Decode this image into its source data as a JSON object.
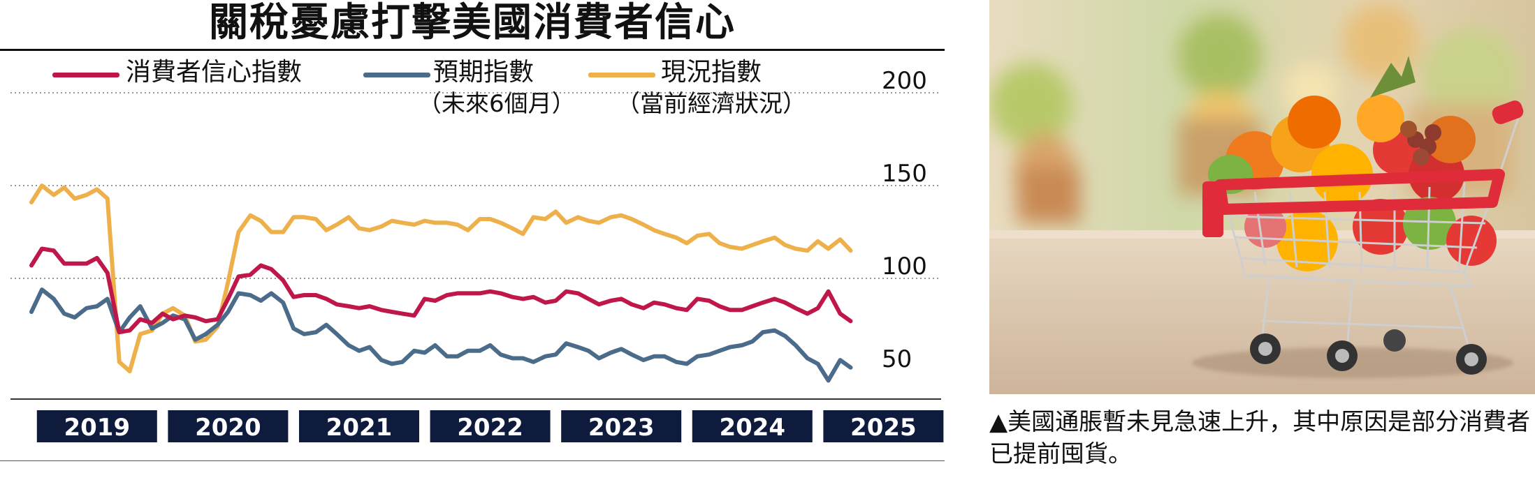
{
  "chart_data": {
    "type": "line",
    "title": "關稅憂慮打擊美國消費者信心",
    "ylim": [
      50,
      200
    ],
    "y_ticks": [
      "50",
      "100",
      "150",
      "200"
    ],
    "grid": true,
    "legend_placement": "top",
    "x_ticks": [
      "2019",
      "2020",
      "2021",
      "2022",
      "2023",
      "2024",
      "2025"
    ],
    "x_range": [
      2019,
      2025.45
    ],
    "series": [
      {
        "name": "消費者信心指數",
        "subtitle": "",
        "color": "#c0174a",
        "x": [
          2019.0,
          2019.08,
          2019.17,
          2019.25,
          2019.33,
          2019.42,
          2019.5,
          2019.58,
          2019.67,
          2019.75,
          2019.83,
          2019.92,
          2020.0,
          2020.08,
          2020.17,
          2020.25,
          2020.33,
          2020.42,
          2020.5,
          2020.58,
          2020.67,
          2020.75,
          2020.83,
          2020.92,
          2021.0,
          2021.08,
          2021.17,
          2021.25,
          2021.33,
          2021.42,
          2021.5,
          2021.58,
          2021.67,
          2021.75,
          2021.83,
          2021.92,
          2022.0,
          2022.08,
          2022.17,
          2022.25,
          2022.33,
          2022.42,
          2022.5,
          2022.58,
          2022.67,
          2022.75,
          2022.83,
          2022.92,
          2023.0,
          2023.08,
          2023.17,
          2023.25,
          2023.33,
          2023.42,
          2023.5,
          2023.58,
          2023.67,
          2023.75,
          2023.83,
          2023.92,
          2024.0,
          2024.08,
          2024.17,
          2024.25,
          2024.33,
          2024.42,
          2024.5,
          2024.58,
          2024.67,
          2024.75,
          2024.83,
          2024.92,
          2025.0,
          2025.08,
          2025.17,
          2025.25
        ],
        "values": [
          122,
          131,
          130,
          123,
          123,
          123,
          126,
          118,
          86,
          87,
          93,
          91,
          96,
          93,
          95,
          94,
          92,
          93,
          104,
          116,
          117,
          122,
          120,
          114,
          105,
          106,
          106,
          104,
          101,
          100,
          99,
          100,
          98,
          97,
          96,
          95,
          104,
          103,
          106,
          107,
          107,
          107,
          108,
          107,
          105,
          104,
          105,
          102,
          103,
          108,
          107,
          104,
          101,
          103,
          104,
          101,
          99,
          102,
          101,
          99,
          98,
          104,
          103,
          100,
          98,
          98,
          100,
          102,
          104,
          102,
          99,
          96,
          99,
          108,
          96,
          92
        ]
      },
      {
        "name": "預期指數",
        "subtitle": "（未來6個月）",
        "color": "#4a6b8a",
        "x": [
          2019.0,
          2019.08,
          2019.17,
          2019.25,
          2019.33,
          2019.42,
          2019.5,
          2019.58,
          2019.67,
          2019.75,
          2019.83,
          2019.92,
          2020.0,
          2020.08,
          2020.17,
          2020.25,
          2020.33,
          2020.42,
          2020.5,
          2020.58,
          2020.67,
          2020.75,
          2020.83,
          2020.92,
          2021.0,
          2021.08,
          2021.17,
          2021.25,
          2021.33,
          2021.42,
          2021.5,
          2021.58,
          2021.67,
          2021.75,
          2021.83,
          2021.92,
          2022.0,
          2022.08,
          2022.17,
          2022.25,
          2022.33,
          2022.42,
          2022.5,
          2022.58,
          2022.67,
          2022.75,
          2022.83,
          2022.92,
          2023.0,
          2023.08,
          2023.17,
          2023.25,
          2023.33,
          2023.42,
          2023.5,
          2023.58,
          2023.67,
          2023.75,
          2023.83,
          2023.92,
          2024.0,
          2024.08,
          2024.17,
          2024.25,
          2024.33,
          2024.42,
          2024.5,
          2024.58,
          2024.67,
          2024.75,
          2024.83,
          2024.92,
          2025.0,
          2025.08,
          2025.17,
          2025.25
        ],
        "values": [
          97,
          109,
          104,
          96,
          94,
          99,
          100,
          104,
          86,
          94,
          100,
          88,
          91,
          95,
          93,
          82,
          85,
          90,
          97,
          107,
          106,
          103,
          107,
          102,
          88,
          85,
          86,
          90,
          85,
          79,
          76,
          78,
          71,
          69,
          70,
          76,
          75,
          79,
          73,
          73,
          76,
          76,
          79,
          74,
          72,
          72,
          70,
          73,
          74,
          80,
          78,
          76,
          72,
          75,
          77,
          74,
          71,
          73,
          73,
          70,
          69,
          73,
          74,
          76,
          78,
          79,
          81,
          86,
          87,
          84,
          79,
          72,
          69,
          60,
          71,
          67
        ]
      },
      {
        "name": "現況指數",
        "subtitle": "（當前經濟狀況）",
        "color": "#eeb04a",
        "x": [
          2019.0,
          2019.08,
          2019.17,
          2019.25,
          2019.33,
          2019.42,
          2019.5,
          2019.58,
          2019.67,
          2019.75,
          2019.83,
          2019.92,
          2020.0,
          2020.08,
          2020.17,
          2020.25,
          2020.33,
          2020.42,
          2020.5,
          2020.58,
          2020.67,
          2020.75,
          2020.83,
          2020.92,
          2021.0,
          2021.08,
          2021.17,
          2021.25,
          2021.33,
          2021.42,
          2021.5,
          2021.58,
          2021.67,
          2021.75,
          2021.83,
          2021.92,
          2022.0,
          2022.08,
          2022.17,
          2022.25,
          2022.33,
          2022.42,
          2022.5,
          2022.58,
          2022.67,
          2022.75,
          2022.83,
          2022.92,
          2023.0,
          2023.08,
          2023.17,
          2023.25,
          2023.33,
          2023.42,
          2023.5,
          2023.58,
          2023.67,
          2023.75,
          2023.83,
          2023.92,
          2024.0,
          2024.08,
          2024.17,
          2024.25,
          2024.33,
          2024.42,
          2024.5,
          2024.58,
          2024.67,
          2024.75,
          2024.83,
          2024.92,
          2025.0,
          2025.08,
          2025.17,
          2025.25
        ],
        "values": [
          156,
          165,
          160,
          164,
          158,
          160,
          163,
          158,
          70,
          65,
          85,
          87,
          96,
          99,
          95,
          81,
          82,
          89,
          113,
          140,
          149,
          146,
          140,
          140,
          148,
          148,
          147,
          141,
          144,
          148,
          142,
          141,
          143,
          146,
          145,
          144,
          146,
          145,
          145,
          144,
          141,
          147,
          147,
          145,
          142,
          139,
          148,
          147,
          151,
          145,
          148,
          146,
          145,
          148,
          149,
          147,
          144,
          141,
          139,
          137,
          134,
          138,
          139,
          134,
          132,
          131,
          133,
          135,
          137,
          133,
          131,
          130,
          135,
          131,
          136,
          130
        ]
      }
    ]
  },
  "caption": "▲美國通脹暫未見急速上升，其中原因是部分消費者已提前囤貨。",
  "photo": {
    "icon": "shopping-cart-icon",
    "fruit_colors": [
      "#f07b1e",
      "#ffb300",
      "#e53935",
      "#7cb342",
      "#8d3b2f"
    ],
    "cart_color": "#e02b3a"
  }
}
